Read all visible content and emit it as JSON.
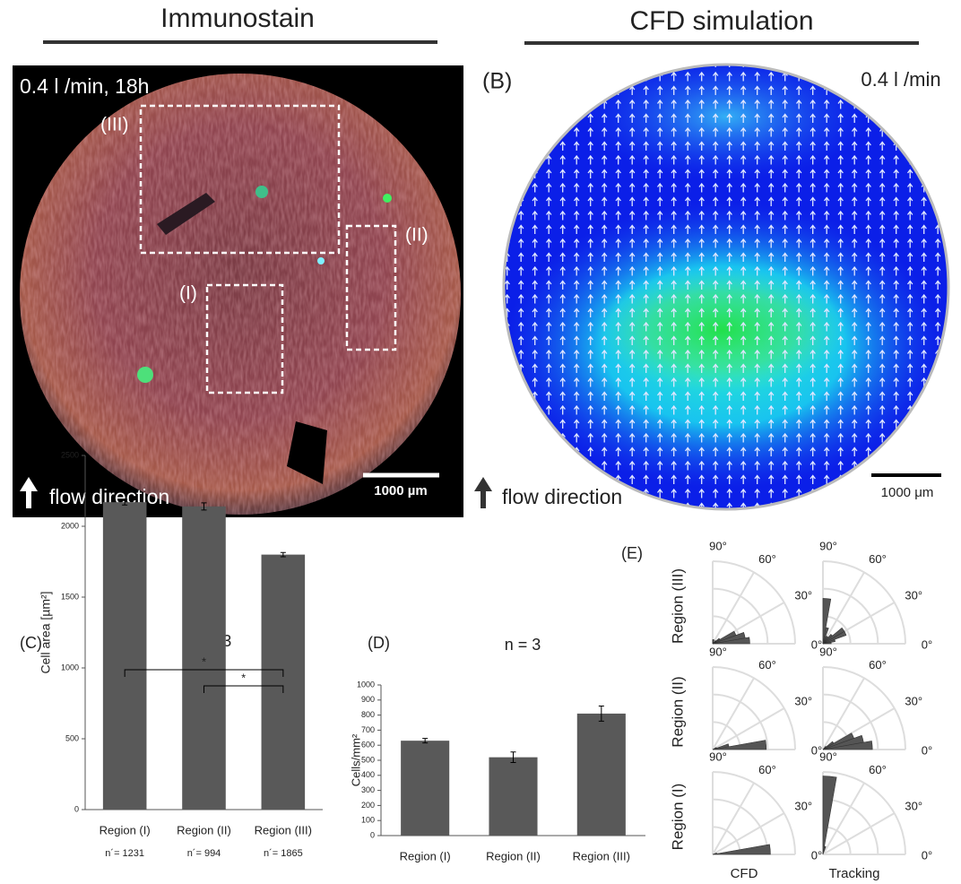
{
  "headers": {
    "left": "Immunostain",
    "right": "CFD simulation"
  },
  "panel_a": {
    "condition": "0.4 l /min, 18h",
    "regions": [
      "(III)",
      "(II)",
      "(I)"
    ],
    "scale_bar": "1000 µm",
    "flow": "flow direction"
  },
  "panel_b": {
    "label": "(B)",
    "condition": "0.4 l /min",
    "scale_bar": "1000 μm",
    "flow": "flow direction"
  },
  "chart_data": [
    {
      "type": "bar",
      "panel": "(C)",
      "title": "n = 3",
      "y_label": "Cell area [µm²]",
      "categories": [
        "Region (I)",
        "Region (II)",
        "Region (III)"
      ],
      "values": [
        2170,
        2140,
        1800
      ],
      "errors": [
        20,
        25,
        15
      ],
      "n_labels": [
        "n´= 1231",
        "n´= 994",
        "n´= 1865"
      ],
      "brackets": [
        {
          "between": [
            0,
            2
          ],
          "label": "*"
        },
        {
          "between": [
            1,
            2
          ],
          "label": "*"
        }
      ],
      "color": "#595959",
      "ylim": [
        0,
        2500
      ],
      "yticks": [
        0,
        500,
        1000,
        1500,
        2000,
        2500
      ]
    },
    {
      "type": "bar",
      "panel": "(D)",
      "title": "n = 3",
      "y_label": "Cells/mm²",
      "categories": [
        "Region (I)",
        "Region (II)",
        "Region (III)"
      ],
      "values": [
        630,
        520,
        810
      ],
      "errors": [
        15,
        35,
        50
      ],
      "color": "#595959",
      "ylim": [
        0,
        1000
      ],
      "yticks": [
        0,
        100,
        200,
        300,
        400,
        500,
        600,
        700,
        800,
        900,
        1000
      ]
    },
    {
      "type": "polar",
      "panel": "(E)",
      "rows": [
        "Region (III)",
        "Region (II)",
        "Region (I)"
      ],
      "columns": [
        "CFD",
        "Tracking"
      ],
      "bins": [
        0,
        10,
        20,
        30,
        40,
        50,
        60,
        70,
        80,
        90
      ],
      "rlim": [
        0,
        1
      ],
      "color": "#555555",
      "angle_ticks": [
        {
          "value": 90,
          "label": "90°"
        },
        {
          "value": 60,
          "label": "60°"
        },
        {
          "value": 30,
          "label": "30°"
        },
        {
          "value": 0,
          "label": "0°"
        }
      ],
      "values": [
        [
          [
            0.45,
            0.4,
            0.3,
            0.1,
            0.05,
            0,
            0,
            0.05,
            0.05
          ],
          [
            0.1,
            0.15,
            0.3,
            0.3,
            0.15,
            0.1,
            0.1,
            0.2,
            0.55
          ]
        ],
        [
          [
            0.65,
            0.2,
            0.05,
            0,
            0,
            0,
            0,
            0,
            0
          ],
          [
            0.6,
            0.5,
            0.4,
            0.15,
            0.05,
            0,
            0,
            0,
            0
          ]
        ],
        [
          [
            0.7,
            0.05,
            0,
            0,
            0,
            0,
            0,
            0,
            0
          ],
          [
            0,
            0,
            0,
            0,
            0,
            0,
            0,
            0.1,
            0.95
          ]
        ]
      ]
    }
  ]
}
